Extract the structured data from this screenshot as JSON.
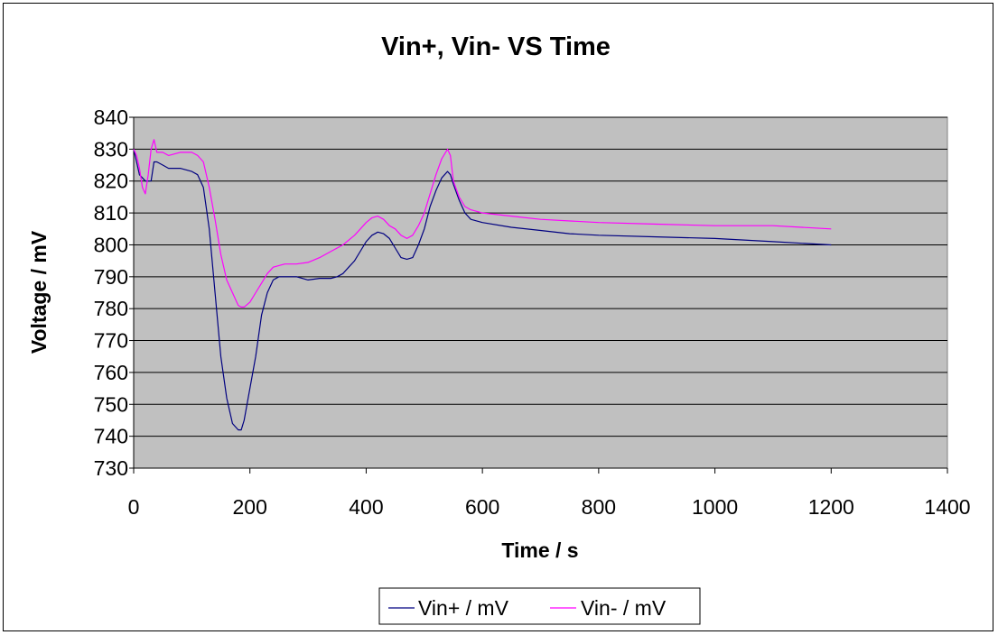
{
  "chart_data": {
    "type": "line",
    "title": "Vin+, Vin- VS Time",
    "xlabel": "Time / s",
    "ylabel": "Voltage / mV",
    "xlim": [
      0,
      1400
    ],
    "ylim": [
      730,
      840
    ],
    "xticks": [
      0,
      200,
      400,
      600,
      800,
      1000,
      1200,
      1400
    ],
    "yticks": [
      730,
      740,
      750,
      760,
      770,
      780,
      790,
      800,
      810,
      820,
      830,
      840
    ],
    "grid": "horizontal",
    "plot_background": "#c0c0c0",
    "legend_position": "bottom",
    "series": [
      {
        "name": "Vin+ / mV",
        "color": "#000080",
        "x": [
          0,
          5,
          10,
          15,
          20,
          25,
          30,
          35,
          40,
          50,
          60,
          80,
          100,
          110,
          120,
          130,
          140,
          150,
          160,
          170,
          180,
          185,
          190,
          195,
          200,
          210,
          220,
          230,
          240,
          250,
          260,
          270,
          280,
          290,
          300,
          320,
          340,
          350,
          360,
          370,
          380,
          390,
          400,
          410,
          420,
          430,
          440,
          450,
          460,
          470,
          480,
          490,
          500,
          510,
          520,
          530,
          540,
          545,
          550,
          560,
          570,
          580,
          600,
          650,
          700,
          750,
          800,
          900,
          1000,
          1100,
          1200
        ],
        "values": [
          830,
          826,
          822,
          821,
          820,
          820,
          820,
          826,
          826,
          825,
          824,
          824,
          823,
          822,
          818,
          805,
          785,
          765,
          752,
          744,
          742,
          742,
          745,
          750,
          755,
          765,
          778,
          785,
          789,
          790,
          790,
          790,
          790,
          789.5,
          789,
          789.5,
          789.5,
          790,
          791,
          793,
          795,
          798,
          801,
          803,
          804,
          803.5,
          802,
          799,
          796,
          795.5,
          796,
          800,
          805,
          812,
          817,
          821,
          823,
          822,
          819,
          814,
          810,
          808,
          807,
          805.5,
          804.5,
          803.5,
          803,
          802.5,
          802,
          801,
          800
        ]
      },
      {
        "name": "Vin- / mV",
        "color": "#ff00ff",
        "x": [
          0,
          5,
          10,
          15,
          20,
          25,
          30,
          35,
          40,
          50,
          60,
          80,
          100,
          110,
          120,
          130,
          140,
          150,
          160,
          170,
          180,
          185,
          190,
          200,
          210,
          220,
          230,
          240,
          250,
          260,
          270,
          280,
          300,
          320,
          340,
          360,
          380,
          390,
          400,
          410,
          420,
          430,
          440,
          450,
          460,
          470,
          480,
          490,
          500,
          510,
          520,
          530,
          540,
          545,
          550,
          560,
          570,
          580,
          600,
          650,
          700,
          800,
          900,
          1000,
          1100,
          1200
        ],
        "values": [
          830,
          828,
          824,
          818,
          816,
          822,
          830,
          833,
          829,
          829,
          828,
          829,
          829,
          828,
          826,
          818,
          808,
          797,
          789,
          785,
          781,
          780.5,
          780.5,
          782,
          785,
          788,
          791,
          793,
          793.5,
          794,
          794,
          794,
          794.5,
          796,
          798,
          800,
          803,
          805,
          807,
          808.5,
          809,
          808,
          806,
          805,
          803,
          802,
          803,
          806,
          810,
          816,
          822,
          827,
          830,
          828,
          820,
          815,
          812,
          811,
          810,
          809,
          808,
          807,
          806.5,
          806,
          806,
          805
        ]
      }
    ]
  }
}
